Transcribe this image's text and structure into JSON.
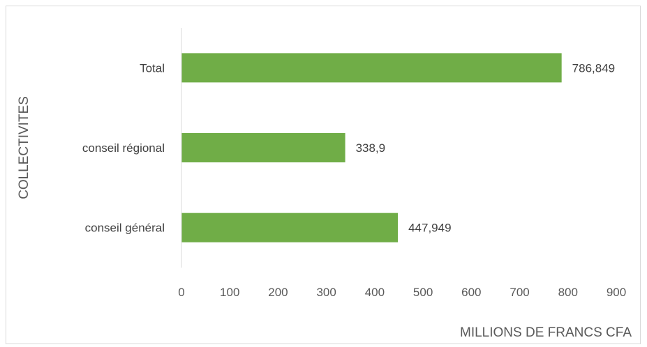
{
  "chart_data": {
    "type": "bar",
    "orientation": "horizontal",
    "categories": [
      "Total",
      "conseil régional",
      "conseil général"
    ],
    "values": [
      786.849,
      338.9,
      447.949
    ],
    "value_labels": [
      "786,849",
      "338,9",
      "447,949"
    ],
    "xlabel": "MILLIONS DE FRANCS CFA",
    "ylabel": "COLLECTIVITES",
    "xlim": [
      0,
      900
    ],
    "xticks": [
      0,
      100,
      200,
      300,
      400,
      500,
      600,
      700,
      800,
      900
    ],
    "grid": false,
    "legend": "none",
    "bar_color": "#70ad47",
    "axis_color": "#d9d9d9"
  }
}
